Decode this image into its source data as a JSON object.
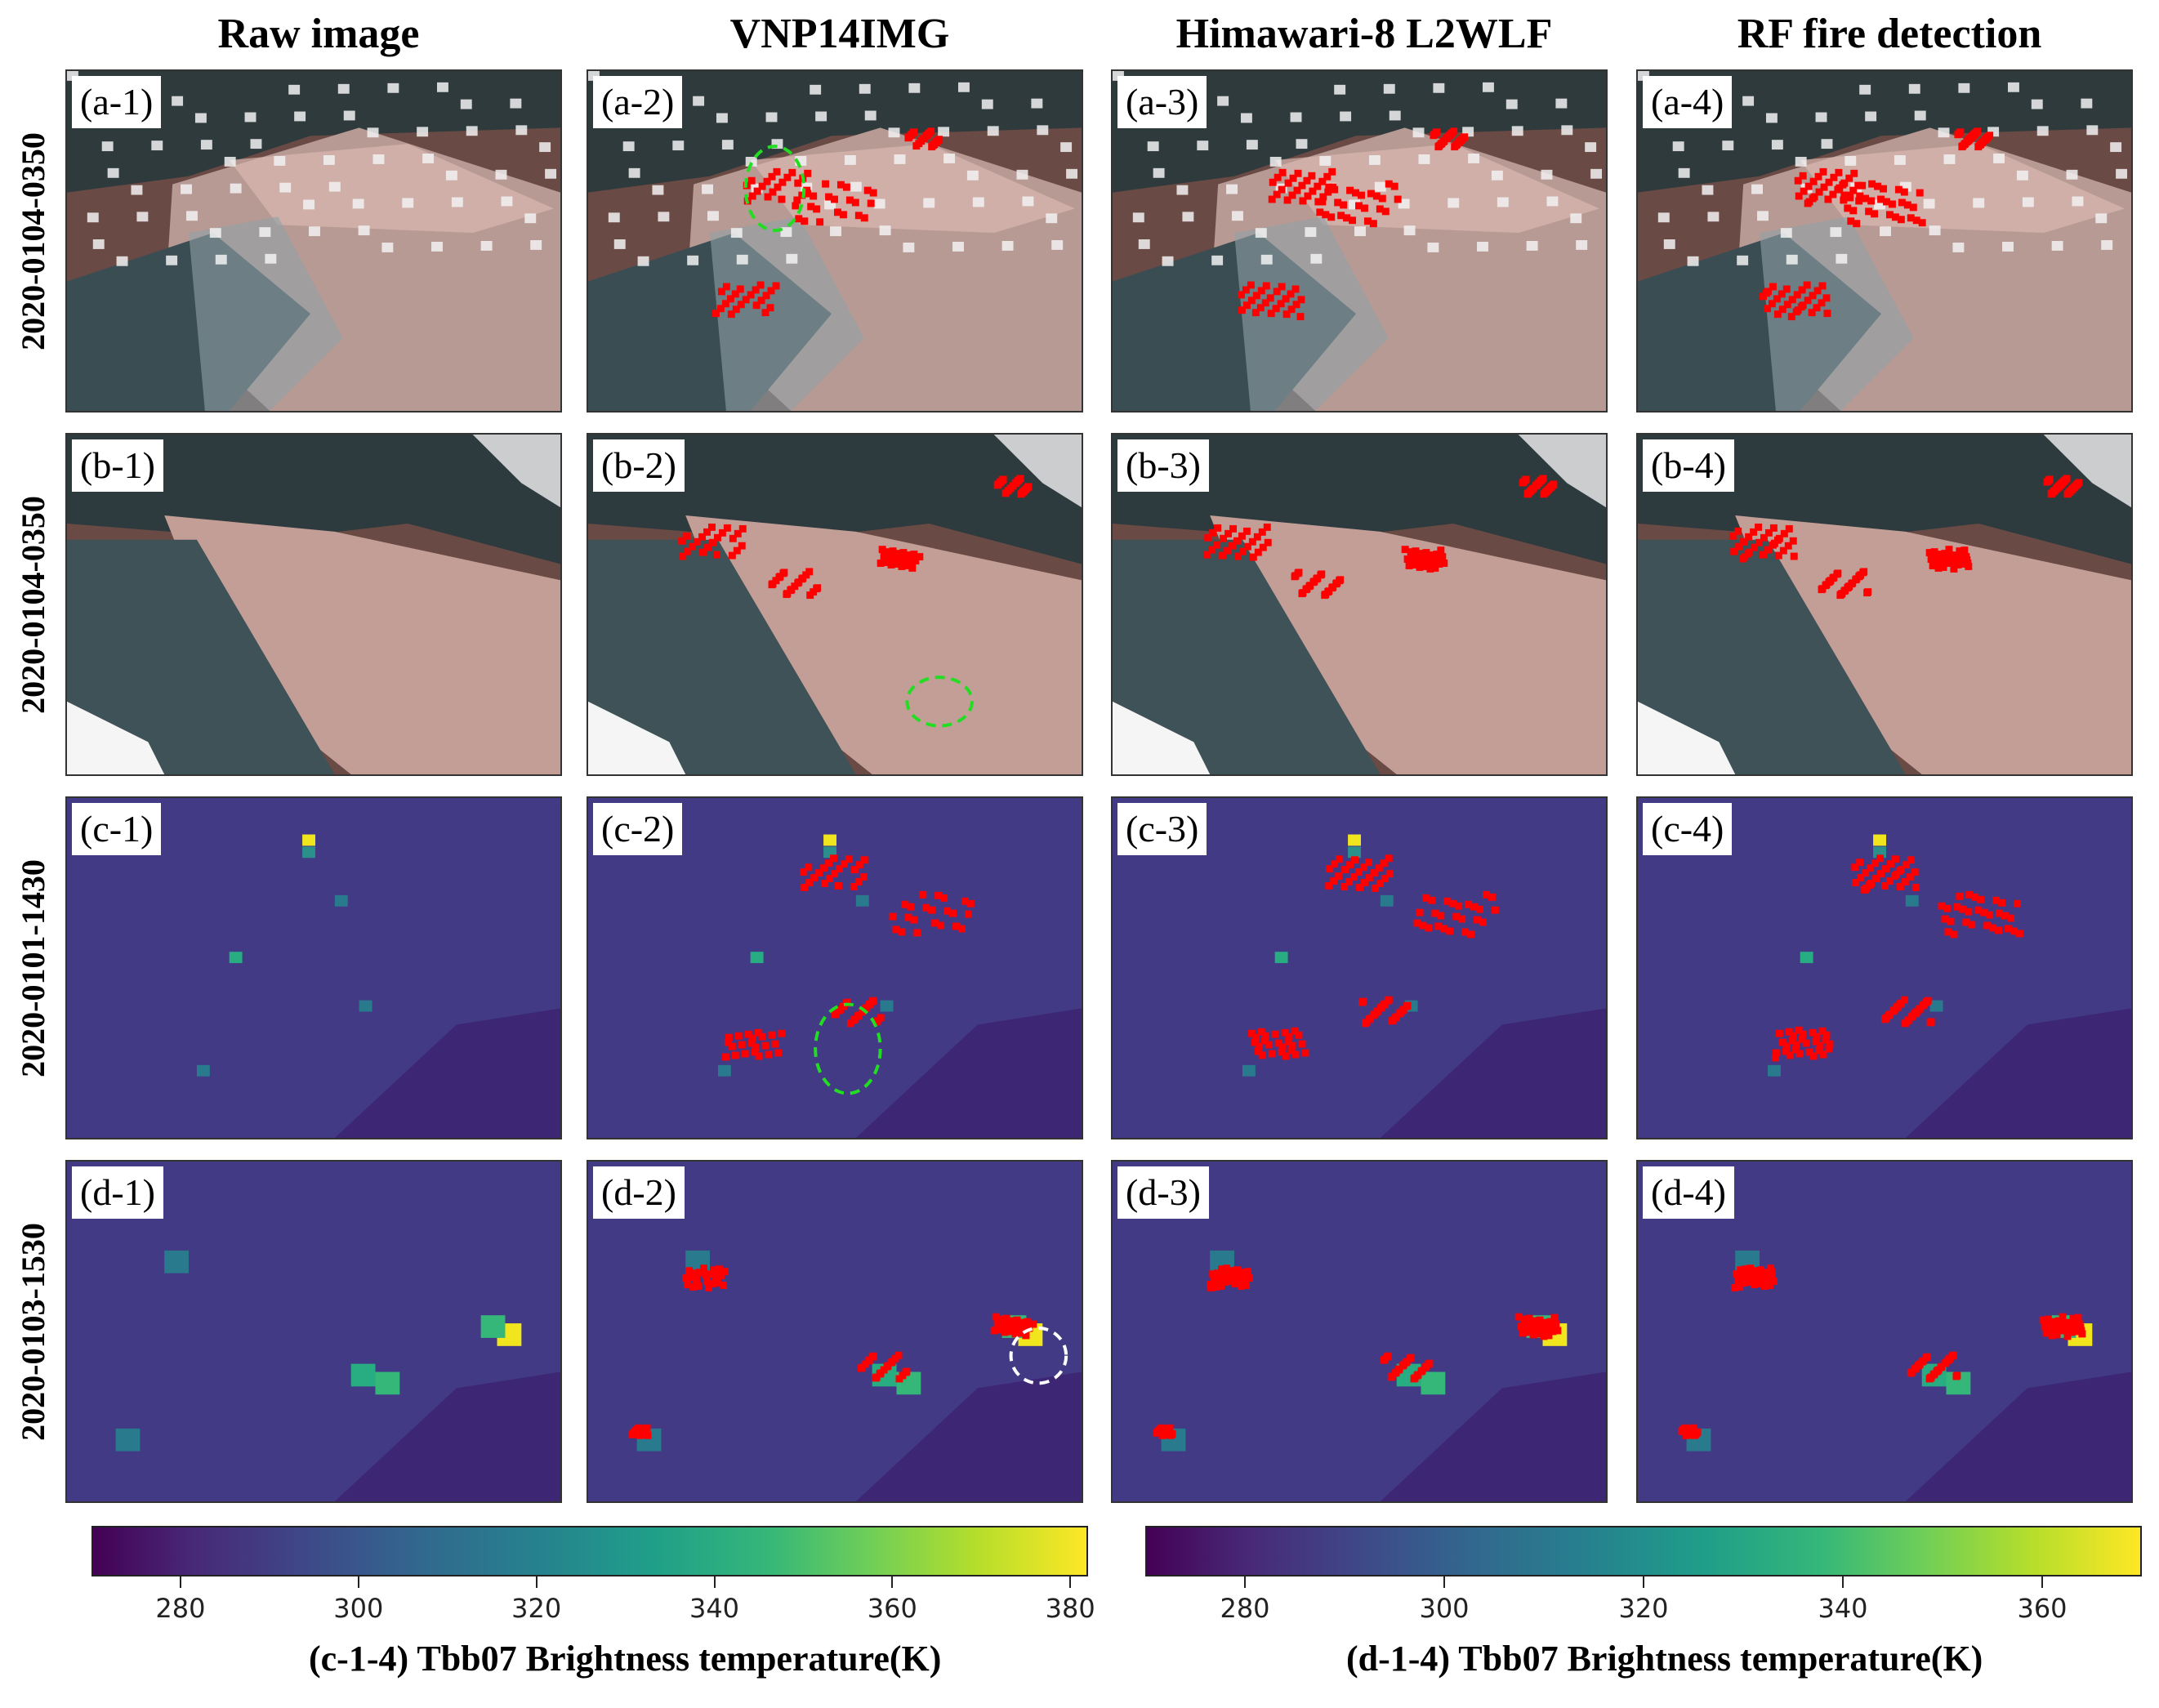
{
  "columns": [
    "Raw image",
    "VNP14IMG",
    "Himawari-8 L2WLF",
    "RF fire detection"
  ],
  "rows": [
    {
      "date": "2020-0104-0350",
      "labels": [
        "(a-1)",
        "(a-2)",
        "(a-3)",
        "(a-4)"
      ],
      "style": "true-color smoke"
    },
    {
      "date": "2020-0104-0350",
      "labels": [
        "(b-1)",
        "(b-2)",
        "(b-3)",
        "(b-4)"
      ],
      "style": "true-color smoke"
    },
    {
      "date": "2020-0101-1430",
      "labels": [
        "(c-1)",
        "(c-2)",
        "(c-3)",
        "(c-4)"
      ],
      "style": "viridis brightness temperature"
    },
    {
      "date": "2020-0103-1530",
      "labels": [
        "(d-1)",
        "(d-2)",
        "(d-3)",
        "(d-4)"
      ],
      "style": "viridis brightness temperature"
    }
  ],
  "colors": {
    "fire_pixels": "#ff0000",
    "missed_fire_circle": "#22dd22",
    "saturated_circle": "#ffffff"
  },
  "colorbars": [
    {
      "title": "(c-1-4) Tbb07 Brightness temperature(K)",
      "range": [
        270,
        382
      ],
      "ticks": [
        "280",
        "300",
        "320",
        "340",
        "360",
        "380"
      ]
    },
    {
      "title": "(d-1-4) Tbb07 Brightness temperature(K)",
      "range": [
        270,
        370
      ],
      "ticks": [
        "280",
        "300",
        "320",
        "340",
        "360"
      ]
    }
  ]
}
